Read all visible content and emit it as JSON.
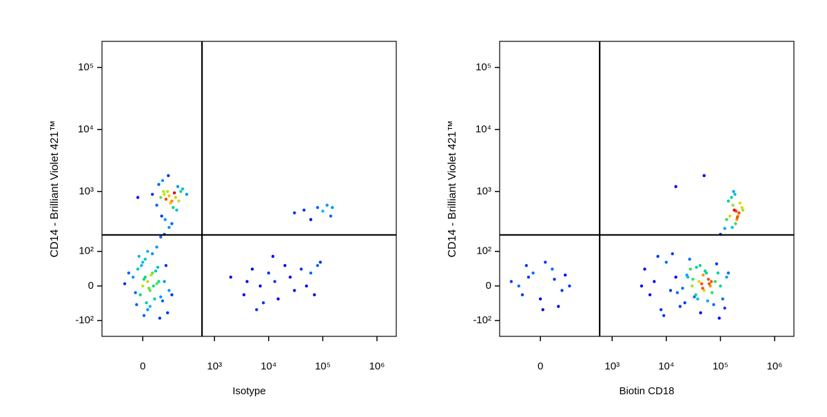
{
  "chart_data": [
    {
      "type": "scatter",
      "scale": "biexponential",
      "xlabel": "Isotype",
      "ylabel": "CD14 - Brilliant Violet 421™",
      "xlim": [
        -260,
        2270000
      ],
      "ylim": [
        -190,
        263000
      ],
      "xticks": [
        0,
        {
          "value": 1000,
          "label": "10³"
        },
        {
          "value": 10000,
          "label": "10⁴"
        },
        {
          "value": 100000,
          "label": "10⁵"
        },
        {
          "value": 1000000,
          "label": "10⁶"
        }
      ],
      "yticks": [
        {
          "value": -100,
          "label": "-10²"
        },
        0,
        {
          "value": 100,
          "label": "10²"
        },
        {
          "value": 1000,
          "label": "10³"
        },
        {
          "value": 10000,
          "label": "10⁴"
        },
        {
          "value": 100000,
          "label": "10⁵"
        }
      ],
      "gates": {
        "x": 586,
        "y": 195
      },
      "x": [
        0,
        20,
        -10,
        40,
        30,
        10,
        -20,
        50,
        60,
        5,
        25,
        35,
        -5,
        15,
        45,
        70,
        -30,
        55,
        80,
        0,
        20,
        10,
        30,
        -15,
        65,
        90,
        -40,
        100,
        120,
        -60,
        40,
        150,
        -80,
        75,
        20,
        5,
        110,
        -25,
        60,
        130,
        80,
        120,
        150,
        100,
        200,
        60,
        130,
        90,
        170,
        110,
        250,
        40,
        140,
        180,
        70,
        210,
        95,
        160,
        -20,
        300,
        125,
        85,
        230,
        105,
        190,
        2000,
        3500,
        5000,
        7000,
        8000,
        10000,
        13000,
        15000,
        20000,
        25000,
        30000,
        40000,
        50000,
        60000,
        70000,
        90000,
        12000,
        6000,
        4000,
        80000,
        30000,
        45000,
        60000,
        80000,
        100000,
        120000,
        140000,
        150000,
        100,
        130,
        80,
        150
      ],
      "y": [
        0,
        10,
        -20,
        30,
        -10,
        20,
        40,
        -30,
        5,
        15,
        -5,
        25,
        50,
        -40,
        0,
        10,
        -15,
        35,
        -25,
        60,
        -60,
        70,
        -50,
        80,
        45,
        -35,
        20,
        10,
        -70,
        30,
        90,
        -20,
        5,
        -90,
        100,
        -80,
        50,
        -45,
        120,
        -10,
        800,
        1000,
        700,
        900,
        1200,
        600,
        850,
        1500,
        950,
        750,
        1100,
        900,
        650,
        800,
        1300,
        700,
        1000,
        550,
        800,
        900,
        1800,
        400,
        1000,
        350,
        500,
        20,
        -20,
        40,
        0,
        -40,
        30,
        10,
        -30,
        50,
        20,
        -10,
        40,
        0,
        30,
        -20,
        60,
        80,
        -60,
        10,
        50,
        450,
        500,
        350,
        550,
        480,
        600,
        400,
        550,
        200,
        260,
        180,
        300
      ]
    },
    {
      "type": "scatter",
      "scale": "biexponential",
      "xlabel": "Biotin CD18",
      "ylabel": "CD14 - Brilliant Violet 421™",
      "xlim": [
        -260,
        2270000
      ],
      "ylim": [
        -190,
        263000
      ],
      "xticks": [
        0,
        {
          "value": 1000,
          "label": "10³"
        },
        {
          "value": 10000,
          "label": "10⁴"
        },
        {
          "value": 100000,
          "label": "10⁵"
        },
        {
          "value": 1000000,
          "label": "10⁶"
        }
      ],
      "yticks": [
        {
          "value": -100,
          "label": "-10²"
        },
        0,
        {
          "value": 100,
          "label": "10²"
        },
        {
          "value": 1000,
          "label": "10³"
        },
        {
          "value": 10000,
          "label": "10⁴"
        },
        {
          "value": 100000,
          "label": "10⁵"
        }
      ],
      "gates": {
        "x": 586,
        "y": 195
      },
      "x": [
        -100,
        -50,
        0,
        50,
        100,
        -150,
        20,
        80,
        -30,
        150,
        -80,
        60,
        10,
        120,
        -60,
        30000,
        40000,
        50000,
        25000,
        35000,
        45000,
        60000,
        20000,
        55000,
        70000,
        28000,
        38000,
        48000,
        33000,
        42000,
        65000,
        22000,
        52000,
        80000,
        18000,
        15000,
        12000,
        90000,
        100000,
        10000,
        8000,
        6000,
        5000,
        4000,
        110000,
        130000,
        3500,
        27000,
        43000,
        58000,
        36000,
        31000,
        47000,
        62000,
        75000,
        24000,
        16000,
        85000,
        120000,
        140000,
        7000,
        9000,
        13000,
        95000,
        68000,
        150000,
        180000,
        200000,
        170000,
        220000,
        160000,
        190000,
        250000,
        140000,
        210000,
        175000,
        230000,
        130000,
        195000,
        165000,
        260000,
        185000,
        120000,
        205000,
        100000,
        15000,
        50000
      ],
      "y": [
        0,
        20,
        -30,
        40,
        -10,
        10,
        60,
        -50,
        30,
        0,
        -20,
        15,
        -60,
        25,
        50,
        0,
        10,
        -10,
        20,
        -20,
        5,
        15,
        -5,
        30,
        -15,
        40,
        -30,
        25,
        -25,
        50,
        0,
        -40,
        35,
        10,
        -50,
        20,
        -10,
        30,
        0,
        60,
        -60,
        10,
        -20,
        40,
        -30,
        20,
        0,
        70,
        -70,
        -35,
        45,
        15,
        -5,
        5,
        -45,
        25,
        -15,
        55,
        -55,
        30,
        80,
        -80,
        90,
        -90,
        10,
        400,
        500,
        350,
        600,
        450,
        800,
        300,
        550,
        700,
        400,
        1000,
        650,
        350,
        480,
        260,
        500,
        900,
        250,
        380,
        200,
        1200,
        1800
      ]
    }
  ]
}
